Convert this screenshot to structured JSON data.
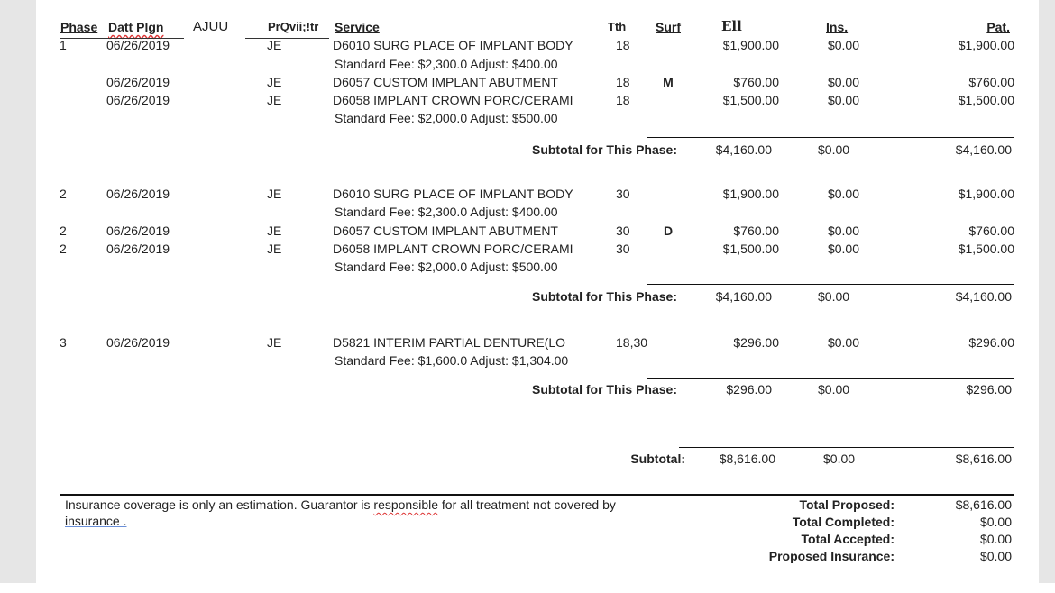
{
  "header": {
    "phase": "Phase",
    "date_plan": "Datt Plgn",
    "ajuu": "AJUU",
    "provider": "PrQvii;!tr",
    "service": "Service",
    "tooth": "Tth",
    "surf": "Surf",
    "fee": "Ell",
    "ins": "Ins.",
    "pat": "Pat."
  },
  "phases": [
    {
      "rows": [
        {
          "phase": "1",
          "date": "06/26/2019",
          "provider": "JE",
          "service": "D6010 SURG PLACE OF IMPLANT BODY",
          "tooth": "18",
          "surf": "",
          "fee": "$1,900.00",
          "ins": "$0.00",
          "pat": "$1,900.00"
        },
        {
          "note": "Standard Fee: $2,300.0 Adjust: $400.00"
        },
        {
          "phase": "",
          "date": "06/26/2019",
          "provider": "JE",
          "service": "D6057 CUSTOM IMPLANT ABUTMENT",
          "tooth": "18",
          "surf": "M",
          "fee": "$760.00",
          "ins": "$0.00",
          "pat": "$760.00"
        },
        {
          "phase": "",
          "date": "06/26/2019",
          "provider": "JE",
          "service": "D6058 IMPLANT CROWN PORC/CERAMI",
          "tooth": "18",
          "surf": "",
          "fee": "$1,500.00",
          "ins": "$0.00",
          "pat": "$1,500.00"
        },
        {
          "note": "Standard Fee: $2,000.0 Adjust: $500.00"
        }
      ],
      "subtotal": {
        "label": "Subtotal for This Phase:",
        "fee": "$4,160.00",
        "ins": "$0.00",
        "pat": "$4,160.00"
      }
    },
    {
      "rows": [
        {
          "phase": "2",
          "date": "06/26/2019",
          "provider": "JE",
          "service": "D6010 SURG PLACE OF IMPLANT BODY",
          "tooth": "30",
          "surf": "",
          "fee": "$1,900.00",
          "ins": "$0.00",
          "pat": "$1,900.00"
        },
        {
          "note": "Standard Fee: $2,300.0 Adjust: $400.00"
        },
        {
          "phase": "2",
          "date": "06/26/2019",
          "provider": "JE",
          "service": "D6057 CUSTOM IMPLANT ABUTMENT",
          "tooth": "30",
          "surf": "D",
          "fee": "$760.00",
          "ins": "$0.00",
          "pat": "$760.00"
        },
        {
          "phase": "2",
          "date": "06/26/2019",
          "provider": "JE",
          "service": "D6058 IMPLANT CROWN PORC/CERAMI",
          "tooth": "30",
          "surf": "",
          "fee": "$1,500.00",
          "ins": "$0.00",
          "pat": "$1,500.00"
        },
        {
          "note": "Standard Fee: $2,000.0 Adjust: $500.00"
        }
      ],
      "subtotal": {
        "label": "Subtotal for This Phase:",
        "fee": "$4,160.00",
        "ins": "$0.00",
        "pat": "$4,160.00"
      }
    },
    {
      "rows": [
        {
          "phase": "3",
          "date": "06/26/2019",
          "provider": "JE",
          "service": "D5821  INTERIM PARTIAL DENTURE(LO",
          "tooth": "18,30",
          "surf": "",
          "fee": "$296.00",
          "ins": "$0.00",
          "pat": "$296.00"
        },
        {
          "note": "Standard Fee: $1,600.0 Adjust: $1,304.00"
        }
      ],
      "subtotal": {
        "label": "Subtotal for This Phase:",
        "fee": "$296.00",
        "ins": "$0.00",
        "pat": "$296.00"
      }
    }
  ],
  "grand_subtotal": {
    "label": "Subtotal:",
    "fee": "$8,616.00",
    "ins": "$0.00",
    "pat": "$8,616.00"
  },
  "footer": {
    "disclaimer_1": "Insurance coverage is only an estimation. Guarantor is ",
    "disclaimer_word": "responsible",
    "disclaimer_2": " for all treatment not covered by",
    "disclaimer_link": "insurance .",
    "totals": [
      {
        "label": "Total Proposed:",
        "value": "$8,616.00"
      },
      {
        "label": "Total Completed:",
        "value": "$0.00"
      },
      {
        "label": "Total Accepted:",
        "value": "$0.00"
      },
      {
        "label": "Proposed Insurance:",
        "value": "$0.00"
      }
    ]
  }
}
